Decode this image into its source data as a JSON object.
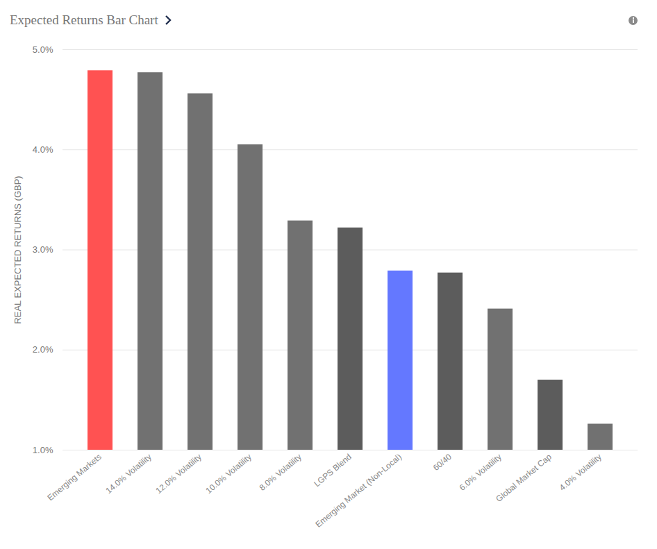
{
  "chart_data": {
    "type": "bar",
    "title": "Expected Returns Bar Chart",
    "y_label": "REAL EXPECTED RETURNS (GBP)",
    "categories": [
      "Emerging Markets",
      "14.0% Volatility",
      "12.0% Volatility",
      "10.0% Volatility",
      "8.0% Volatility",
      "LGPS Blend",
      "Emerging Market (Non-Local)",
      "60/40",
      "6.0% Volatility",
      "Global Market Cap",
      "4.0% Volatility"
    ],
    "values": [
      4.79,
      4.77,
      4.56,
      4.05,
      3.29,
      3.22,
      2.79,
      2.77,
      2.41,
      1.7,
      1.26
    ],
    "colors": [
      "#ff5252",
      "#717171",
      "#717171",
      "#717171",
      "#717171",
      "#5c5c5c",
      "#6478ff",
      "#5c5c5c",
      "#717171",
      "#5c5c5c",
      "#717171"
    ],
    "ylim": [
      1,
      5
    ],
    "yticks": [
      {
        "value": 1,
        "label": "1.0%"
      },
      {
        "value": 2,
        "label": "2.0%"
      },
      {
        "value": 3,
        "label": "3.0%"
      },
      {
        "value": 4,
        "label": "4.0%"
      },
      {
        "value": 5,
        "label": "5.0%"
      }
    ],
    "grid": true
  }
}
